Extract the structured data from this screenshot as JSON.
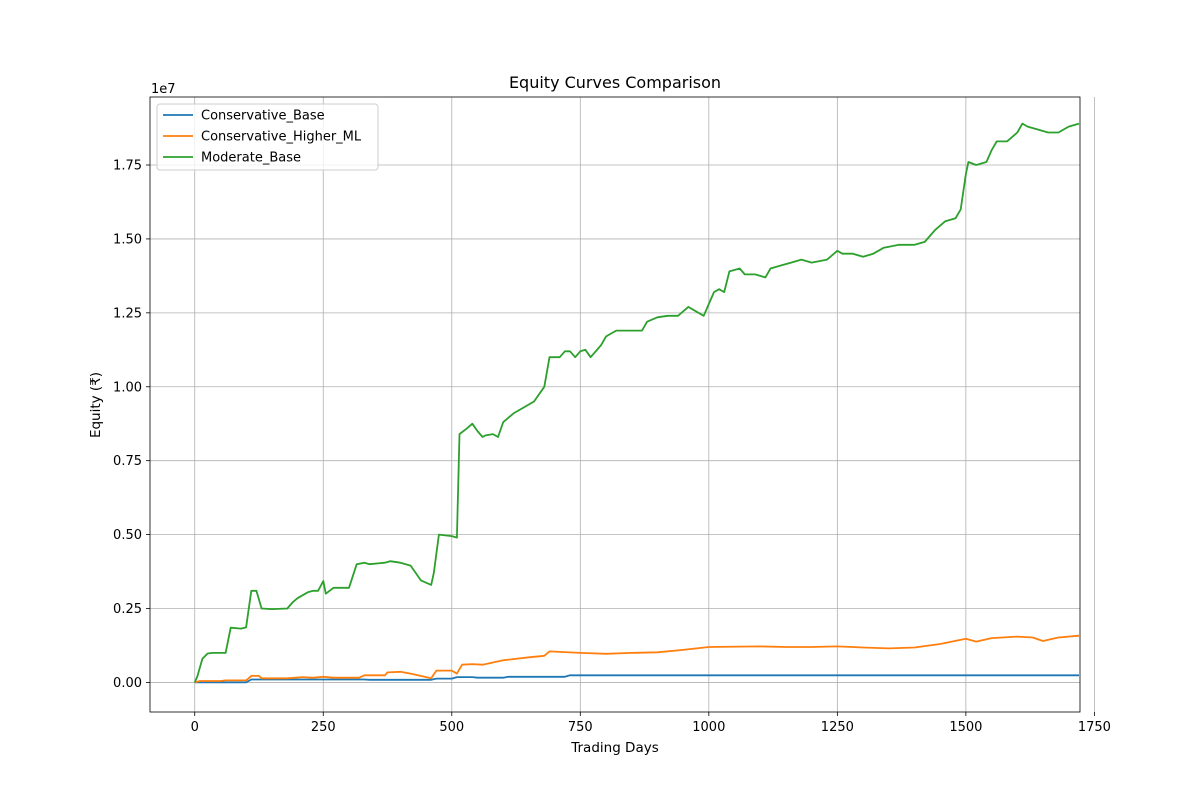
{
  "chart_data": {
    "type": "line",
    "title": "Equity Curves Comparison",
    "xlabel": "Trading Days",
    "ylabel": "Equity (₹)",
    "y_offset_text": "1e7",
    "y_scale": 10000000,
    "xlim": [
      -87,
      1722
    ],
    "ylim": [
      -0.1,
      1.98
    ],
    "xticks": [
      0,
      250,
      500,
      750,
      1000,
      1250,
      1500,
      1750
    ],
    "xtick_labels": [
      "0",
      "250",
      "500",
      "750",
      "1000",
      "1250",
      "1500",
      "1750"
    ],
    "yticks": [
      0,
      0.25,
      0.5,
      0.75,
      1.0,
      1.25,
      1.5,
      1.75
    ],
    "ytick_labels": [
      "0.00",
      "0.25",
      "0.50",
      "0.75",
      "1.00",
      "1.25",
      "1.50",
      "1.75"
    ],
    "grid": true,
    "legend_position": "top-left",
    "series": [
      {
        "name": "Conservative_Base",
        "color": "#1f77b4",
        "points": [
          [
            0,
            0
          ],
          [
            20,
            0
          ],
          [
            60,
            0
          ],
          [
            100,
            0
          ],
          [
            110,
            0.01
          ],
          [
            250,
            0.01
          ],
          [
            330,
            0.01
          ],
          [
            340,
            0.009
          ],
          [
            460,
            0.009
          ],
          [
            470,
            0.013
          ],
          [
            500,
            0.013
          ],
          [
            510,
            0.018
          ],
          [
            540,
            0.018
          ],
          [
            550,
            0.016
          ],
          [
            600,
            0.016
          ],
          [
            610,
            0.019
          ],
          [
            720,
            0.019
          ],
          [
            730,
            0.024
          ],
          [
            1000,
            0.024
          ],
          [
            1720,
            0.024
          ]
        ]
      },
      {
        "name": "Conservative_Higher_ML",
        "color": "#ff7f0e",
        "points": [
          [
            0,
            0
          ],
          [
            10,
            0.005
          ],
          [
            50,
            0.005
          ],
          [
            60,
            0.007
          ],
          [
            100,
            0.007
          ],
          [
            110,
            0.022
          ],
          [
            125,
            0.022
          ],
          [
            130,
            0.014
          ],
          [
            180,
            0.014
          ],
          [
            210,
            0.018
          ],
          [
            230,
            0.016
          ],
          [
            250,
            0.019
          ],
          [
            270,
            0.016
          ],
          [
            320,
            0.016
          ],
          [
            330,
            0.024
          ],
          [
            370,
            0.024
          ],
          [
            375,
            0.034
          ],
          [
            400,
            0.036
          ],
          [
            420,
            0.03
          ],
          [
            450,
            0.018
          ],
          [
            460,
            0.014
          ],
          [
            470,
            0.04
          ],
          [
            500,
            0.04
          ],
          [
            510,
            0.03
          ],
          [
            520,
            0.06
          ],
          [
            540,
            0.062
          ],
          [
            560,
            0.06
          ],
          [
            600,
            0.075
          ],
          [
            650,
            0.085
          ],
          [
            680,
            0.09
          ],
          [
            690,
            0.105
          ],
          [
            750,
            0.1
          ],
          [
            800,
            0.097
          ],
          [
            850,
            0.1
          ],
          [
            900,
            0.102
          ],
          [
            950,
            0.11
          ],
          [
            1000,
            0.12
          ],
          [
            1100,
            0.122
          ],
          [
            1150,
            0.12
          ],
          [
            1200,
            0.12
          ],
          [
            1250,
            0.122
          ],
          [
            1300,
            0.118
          ],
          [
            1350,
            0.115
          ],
          [
            1400,
            0.118
          ],
          [
            1450,
            0.13
          ],
          [
            1500,
            0.148
          ],
          [
            1520,
            0.138
          ],
          [
            1550,
            0.15
          ],
          [
            1600,
            0.155
          ],
          [
            1630,
            0.152
          ],
          [
            1650,
            0.14
          ],
          [
            1680,
            0.152
          ],
          [
            1720,
            0.158
          ]
        ]
      },
      {
        "name": "Moderate_Base",
        "color": "#2ca02c",
        "points": [
          [
            0,
            0
          ],
          [
            5,
            0.02
          ],
          [
            15,
            0.08
          ],
          [
            25,
            0.098
          ],
          [
            35,
            0.1
          ],
          [
            60,
            0.1
          ],
          [
            70,
            0.185
          ],
          [
            90,
            0.182
          ],
          [
            100,
            0.186
          ],
          [
            110,
            0.31
          ],
          [
            120,
            0.31
          ],
          [
            130,
            0.25
          ],
          [
            150,
            0.248
          ],
          [
            180,
            0.25
          ],
          [
            190,
            0.27
          ],
          [
            200,
            0.285
          ],
          [
            220,
            0.305
          ],
          [
            230,
            0.31
          ],
          [
            240,
            0.31
          ],
          [
            250,
            0.343
          ],
          [
            255,
            0.3
          ],
          [
            270,
            0.32
          ],
          [
            280,
            0.32
          ],
          [
            300,
            0.32
          ],
          [
            315,
            0.4
          ],
          [
            330,
            0.405
          ],
          [
            340,
            0.4
          ],
          [
            370,
            0.405
          ],
          [
            380,
            0.41
          ],
          [
            400,
            0.405
          ],
          [
            420,
            0.395
          ],
          [
            440,
            0.345
          ],
          [
            460,
            0.33
          ],
          [
            465,
            0.37
          ],
          [
            475,
            0.5
          ],
          [
            500,
            0.495
          ],
          [
            510,
            0.49
          ],
          [
            515,
            0.84
          ],
          [
            530,
            0.86
          ],
          [
            540,
            0.875
          ],
          [
            550,
            0.85
          ],
          [
            560,
            0.83
          ],
          [
            565,
            0.835
          ],
          [
            580,
            0.84
          ],
          [
            590,
            0.83
          ],
          [
            600,
            0.88
          ],
          [
            620,
            0.91
          ],
          [
            640,
            0.93
          ],
          [
            660,
            0.95
          ],
          [
            680,
            1.0
          ],
          [
            690,
            1.1
          ],
          [
            710,
            1.1
          ],
          [
            720,
            1.12
          ],
          [
            730,
            1.12
          ],
          [
            740,
            1.1
          ],
          [
            750,
            1.12
          ],
          [
            760,
            1.125
          ],
          [
            770,
            1.1
          ],
          [
            790,
            1.14
          ],
          [
            800,
            1.17
          ],
          [
            810,
            1.18
          ],
          [
            820,
            1.19
          ],
          [
            840,
            1.19
          ],
          [
            870,
            1.19
          ],
          [
            880,
            1.22
          ],
          [
            900,
            1.235
          ],
          [
            920,
            1.24
          ],
          [
            940,
            1.24
          ],
          [
            960,
            1.27
          ],
          [
            980,
            1.25
          ],
          [
            990,
            1.24
          ],
          [
            1000,
            1.28
          ],
          [
            1010,
            1.32
          ],
          [
            1020,
            1.33
          ],
          [
            1030,
            1.32
          ],
          [
            1040,
            1.39
          ],
          [
            1060,
            1.4
          ],
          [
            1070,
            1.38
          ],
          [
            1090,
            1.38
          ],
          [
            1110,
            1.37
          ],
          [
            1120,
            1.4
          ],
          [
            1140,
            1.41
          ],
          [
            1160,
            1.42
          ],
          [
            1180,
            1.43
          ],
          [
            1200,
            1.42
          ],
          [
            1230,
            1.43
          ],
          [
            1250,
            1.46
          ],
          [
            1260,
            1.45
          ],
          [
            1280,
            1.45
          ],
          [
            1300,
            1.44
          ],
          [
            1320,
            1.45
          ],
          [
            1340,
            1.47
          ],
          [
            1370,
            1.48
          ],
          [
            1400,
            1.48
          ],
          [
            1420,
            1.49
          ],
          [
            1440,
            1.53
          ],
          [
            1460,
            1.56
          ],
          [
            1480,
            1.57
          ],
          [
            1490,
            1.6
          ],
          [
            1500,
            1.72
          ],
          [
            1505,
            1.76
          ],
          [
            1520,
            1.75
          ],
          [
            1540,
            1.76
          ],
          [
            1550,
            1.8
          ],
          [
            1560,
            1.83
          ],
          [
            1580,
            1.83
          ],
          [
            1600,
            1.86
          ],
          [
            1610,
            1.89
          ],
          [
            1620,
            1.88
          ],
          [
            1640,
            1.87
          ],
          [
            1660,
            1.86
          ],
          [
            1680,
            1.86
          ],
          [
            1700,
            1.88
          ],
          [
            1720,
            1.89
          ]
        ]
      }
    ]
  }
}
